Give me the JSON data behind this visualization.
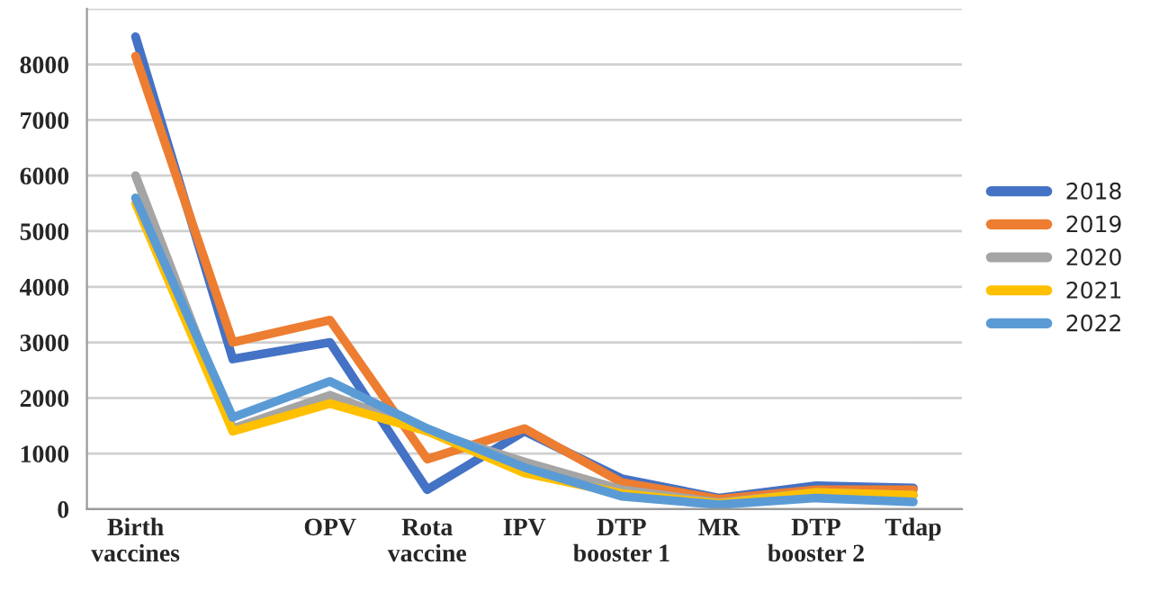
{
  "chart_data": {
    "type": "line",
    "categories": [
      "Birth\nvaccines",
      null,
      "OPV",
      "Rota\nvaccine",
      "IPV",
      "DTP\nbooster 1",
      "MR",
      "DTP\nbooster 2",
      "Tdap"
    ],
    "series": [
      {
        "name": "2018",
        "color": "#4472c4",
        "values": [
          8500,
          2700,
          3000,
          350,
          1400,
          550,
          200,
          420,
          380
        ]
      },
      {
        "name": "2019",
        "color": "#ed7d31",
        "values": [
          8150,
          3000,
          3400,
          900,
          1450,
          480,
          180,
          350,
          350
        ]
      },
      {
        "name": "2020",
        "color": "#a5a5a5",
        "values": [
          6000,
          1450,
          2050,
          1400,
          850,
          350,
          120,
          300,
          250
        ]
      },
      {
        "name": "2021",
        "color": "#ffc000",
        "values": [
          5500,
          1400,
          1900,
          1400,
          650,
          280,
          100,
          300,
          250
        ]
      },
      {
        "name": "2022",
        "color": "#5b9bd5",
        "values": [
          5600,
          1650,
          2300,
          1450,
          750,
          230,
          80,
          200,
          130
        ]
      }
    ],
    "ylim": [
      0,
      9000
    ],
    "yticks": [
      0,
      1000,
      2000,
      3000,
      4000,
      5000,
      6000,
      7000,
      8000,
      {
        "value": 9000,
        "label": null
      }
    ],
    "grid": "y",
    "legend": "right",
    "marker": "none",
    "line_style": "solid"
  }
}
